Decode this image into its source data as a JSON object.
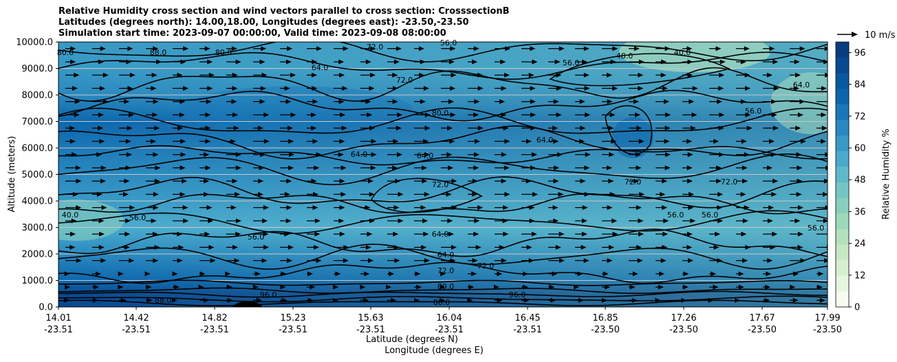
{
  "header": {
    "title_line1": "Relative Humidity cross section and wind vectors parallel to cross section: CrosssectionB",
    "title_line2": "Latitudes (degrees north): 14.00,18.00, Longitudes (degrees east): -23.50,-23.50",
    "title_line3": "Simulation start time: 2023-09-07 00:00:00, Valid time: 2023-09-08 08:00:00"
  },
  "chart_data": {
    "type": "heatmap",
    "title": "Relative Humidity cross section and wind vectors parallel to cross section: CrosssectionB",
    "ylabel": "Altitude (meters)",
    "xlabel_lat": "Latitude (degrees N)",
    "xlabel_lon": "Longitude (degrees E)",
    "ylim": [
      0,
      10000
    ],
    "y_ticks": [
      "0.0",
      "1000.0",
      "2000.0",
      "3000.0",
      "4000.0",
      "5000.0",
      "6000.0",
      "7000.0",
      "8000.0",
      "9000.0",
      "10000.0"
    ],
    "x_ticks": [
      {
        "lat": "14.01",
        "lon": "-23.51"
      },
      {
        "lat": "14.42",
        "lon": "-23.51"
      },
      {
        "lat": "14.82",
        "lon": "-23.51"
      },
      {
        "lat": "15.23",
        "lon": "-23.51"
      },
      {
        "lat": "15.63",
        "lon": "-23.51"
      },
      {
        "lat": "16.04",
        "lon": "-23.51"
      },
      {
        "lat": "16.45",
        "lon": "-23.51"
      },
      {
        "lat": "16.85",
        "lon": "-23.50"
      },
      {
        "lat": "17.26",
        "lon": "-23.50"
      },
      {
        "lat": "17.67",
        "lon": "-23.50"
      },
      {
        "lat": "17.99",
        "lon": "-23.50"
      }
    ],
    "grid": "horizontal",
    "colorbar": {
      "label": "Relative Humidity %",
      "range": [
        0,
        100
      ],
      "ticks": [
        "0",
        "12",
        "24",
        "36",
        "48",
        "60",
        "72",
        "84",
        "96"
      ],
      "colors": [
        "#f7fcf0",
        "#e7f6e1",
        "#d6efd0",
        "#c6e9c3",
        "#b2e1bc",
        "#9dd8ba",
        "#88cfbe",
        "#74c6c5",
        "#5fb9ca",
        "#4aaace",
        "#3899c6",
        "#2988bf",
        "#1a77b7",
        "#0c66ad",
        "#08589f",
        "#084a91",
        "#083d80"
      ]
    },
    "quiver_key": "10 m/s",
    "contour_levels_labeled": [
      "40.0",
      "48.0",
      "56.0",
      "64.0",
      "72.0",
      "80.0",
      "88.0",
      "96.0"
    ],
    "rh_field_profile": [
      {
        "altitude": 0,
        "rh": 94
      },
      {
        "altitude": 500,
        "rh": 90
      },
      {
        "altitude": 1000,
        "rh": 80
      },
      {
        "altitude": 2000,
        "rh": 66
      },
      {
        "altitude": 3000,
        "rh": 58
      },
      {
        "altitude": 4000,
        "rh": 64
      },
      {
        "altitude": 5000,
        "rh": 66
      },
      {
        "altitude": 6000,
        "rh": 72
      },
      {
        "altitude": 7000,
        "rh": 78
      },
      {
        "altitude": 8000,
        "rh": 68
      },
      {
        "altitude": 9000,
        "rh": 62
      },
      {
        "altitude": 10000,
        "rh": 60
      }
    ]
  }
}
